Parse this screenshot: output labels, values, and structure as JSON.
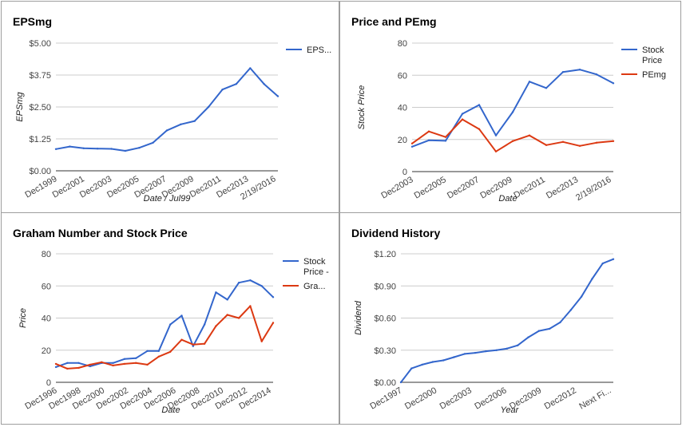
{
  "chart_data": [
    {
      "type": "line",
      "title": "EPSmg",
      "xlabel": "Date / Jul99",
      "ylabel": "EPSmg",
      "ylim": [
        0,
        5
      ],
      "yticks": [
        "$0.00",
        "$1.25",
        "$2.50",
        "$3.75",
        "$5.00"
      ],
      "xticks": [
        "Dec1999",
        "Dec2001",
        "Dec2003",
        "Dec2005",
        "Dec2007",
        "Dec2009",
        "Dec2011",
        "Dec2013",
        "2/19/2016"
      ],
      "legend_position": "right",
      "grid": true,
      "x": [
        "Dec1999",
        "Dec2000",
        "Dec2001",
        "Dec2002",
        "Dec2003",
        "Dec2004",
        "Dec2005",
        "Dec2006",
        "Dec2007",
        "Dec2008",
        "Dec2009",
        "Dec2010",
        "Dec2011",
        "Dec2012",
        "Dec2013",
        "Dec2014",
        "2/19/2016"
      ],
      "series": [
        {
          "name": "EPS...",
          "color": "#3366cc",
          "values": [
            0.85,
            0.95,
            0.88,
            0.87,
            0.86,
            0.78,
            0.9,
            1.1,
            1.58,
            1.82,
            1.95,
            2.5,
            3.18,
            3.4,
            4.02,
            3.4,
            2.92
          ]
        }
      ]
    },
    {
      "type": "line",
      "title": "Price and PEmg",
      "xlabel": "Date",
      "ylabel": "Stock Price",
      "ylim": [
        0,
        80
      ],
      "yticks": [
        "0",
        "20",
        "40",
        "60",
        "80"
      ],
      "xticks": [
        "Dec2003",
        "Dec2005",
        "Dec2007",
        "Dec2009",
        "Dec2011",
        "Dec2013",
        "2/19/2016"
      ],
      "legend_position": "right",
      "grid": true,
      "x": [
        "Dec2003",
        "Dec2004",
        "Dec2005",
        "Dec2006",
        "Dec2007",
        "Dec2008",
        "Dec2009",
        "Dec2010",
        "Dec2011",
        "Dec2012",
        "Dec2013",
        "Dec2014",
        "2/19/2016"
      ],
      "series": [
        {
          "name": "Stock Price",
          "color": "#3366cc",
          "values": [
            15.5,
            19.5,
            19.2,
            36,
            41.5,
            22.5,
            37,
            56,
            52,
            62,
            63.5,
            60.5,
            55
          ]
        },
        {
          "name": "PEmg",
          "color": "#dc3912",
          "values": [
            17.5,
            25,
            21.5,
            32.5,
            26.5,
            12.5,
            19,
            22.5,
            16.5,
            18.5,
            16,
            18,
            19
          ]
        }
      ]
    },
    {
      "type": "line",
      "title": "Graham Number and Stock Price",
      "xlabel": "Date",
      "ylabel": "Price",
      "ylim": [
        0,
        80
      ],
      "yticks": [
        "0",
        "20",
        "40",
        "60",
        "80"
      ],
      "xticks": [
        "Dec1996",
        "Dec1998",
        "Dec2000",
        "Dec2002",
        "Dec2004",
        "Dec2006",
        "Dec2008",
        "Dec2010",
        "Dec2012",
        "Dec2014"
      ],
      "legend_position": "right",
      "grid": true,
      "x": [
        "Dec1996",
        "Dec1997",
        "Dec1998",
        "Dec1999",
        "Dec2000",
        "Dec2001",
        "Dec2002",
        "Dec2003",
        "Dec2004",
        "Dec2005",
        "Dec2006",
        "Dec2007",
        "Dec2008",
        "Dec2009",
        "Dec2010",
        "Dec2011",
        "Dec2012",
        "Dec2013",
        "Dec2014",
        "Dec2015"
      ],
      "series": [
        {
          "name": "Stock Price -",
          "color": "#3366cc",
          "values": [
            9.5,
            12,
            12,
            10,
            12,
            12,
            14.5,
            15,
            19.5,
            19.5,
            36,
            41.5,
            22.5,
            36,
            56,
            51.5,
            62,
            63.5,
            60,
            53
          ]
        },
        {
          "name": "Gra...",
          "color": "#dc3912",
          "values": [
            11.5,
            8.5,
            9,
            11,
            12.5,
            10.5,
            11.5,
            12,
            11,
            16,
            19,
            26.5,
            23.5,
            24,
            35,
            42,
            40,
            47.5,
            25.5,
            37
          ]
        }
      ]
    },
    {
      "type": "line",
      "title": "Dividend History",
      "xlabel": "Year",
      "ylabel": "Dividend",
      "ylim": [
        0,
        1.2
      ],
      "yticks": [
        "$0.00",
        "$0.30",
        "$0.60",
        "$0.90",
        "$1.20"
      ],
      "xticks": [
        "Dec1997",
        "Dec2000",
        "Dec2003",
        "Dec2006",
        "Dec2009",
        "Dec2012",
        "Next Fi..."
      ],
      "grid": true,
      "x": [
        "Dec1996",
        "Dec1997",
        "Dec1998",
        "Dec1999",
        "Dec2000",
        "Dec2001",
        "Dec2002",
        "Dec2003",
        "Dec2004",
        "Dec2005",
        "Dec2006",
        "Dec2007",
        "Dec2008",
        "Dec2009",
        "Dec2010",
        "Dec2011",
        "Dec2012",
        "Dec2013",
        "Dec2014",
        "Dec2015",
        "Next Fi..."
      ],
      "series": [
        {
          "color": "#3366cc",
          "values": [
            0.0,
            0.13,
            0.165,
            0.19,
            0.205,
            0.235,
            0.265,
            0.275,
            0.29,
            0.3,
            0.315,
            0.345,
            0.42,
            0.48,
            0.5,
            0.56,
            0.675,
            0.8,
            0.965,
            1.11,
            1.15
          ]
        }
      ]
    }
  ]
}
